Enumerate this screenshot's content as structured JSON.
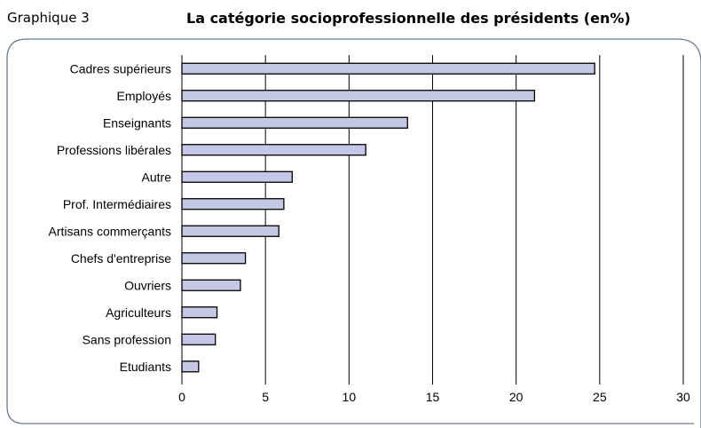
{
  "header": {
    "figure_label": "Graphique 3"
  },
  "chart_data": {
    "type": "bar",
    "orientation": "horizontal",
    "title": "La catégorie socioprofessionnelle des présidents (en%)",
    "categories": [
      "Cadres supérieurs",
      "Employés",
      "Enseignants",
      "Professions libérales",
      "Autre",
      "Prof. Intermédiaires",
      "Artisans commerçants",
      "Chefs d'entreprise",
      "Ouvriers",
      "Agriculteurs",
      "Sans profession",
      "Etudiants"
    ],
    "values": [
      24.7,
      21.1,
      13.5,
      11.0,
      6.6,
      6.1,
      5.8,
      3.8,
      3.5,
      2.1,
      2.0,
      1.0
    ],
    "xlim": [
      0,
      30
    ],
    "xticks": [
      "0",
      "5",
      "10",
      "15",
      "20",
      "25",
      "30"
    ],
    "xlabel": "",
    "ylabel": "",
    "grid": "vertical",
    "legend": "none",
    "colors": {
      "bar_fill": "#c5c8e4",
      "bar_stroke": "#000000",
      "gridline": "#000000",
      "frame": "#6b7a90"
    }
  }
}
